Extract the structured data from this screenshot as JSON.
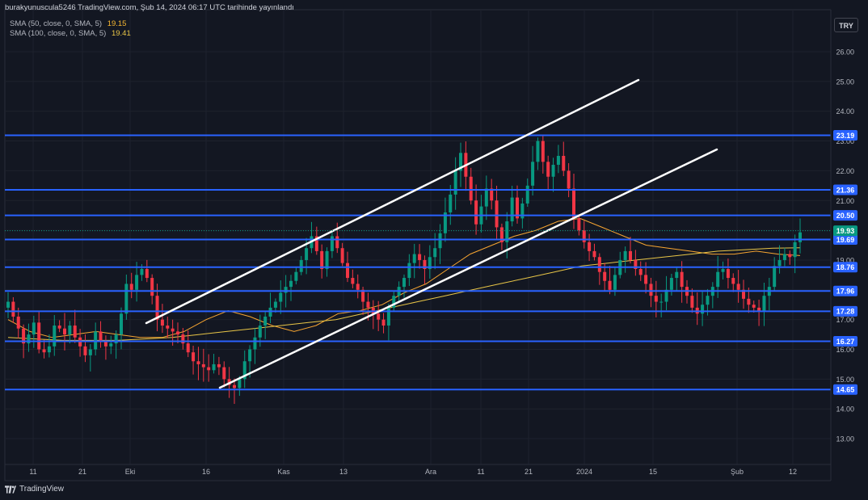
{
  "header": {
    "publisher": "burakyunuscula5246 TradingView.com, Şub 14, 2024 06:17 UTC tarihinde yayınlandı",
    "currency": "TRY"
  },
  "legend": {
    "sma50": {
      "label": "SMA (50, close, 0, SMA, 5)",
      "value": "19.15",
      "color": "#f7b731"
    },
    "sma100": {
      "label": "SMA (100, close, 0, SMA, 5)",
      "value": "19.41",
      "color": "#e8c547"
    }
  },
  "footer": {
    "brand": "TradingView"
  },
  "colors": {
    "background": "#131722",
    "up": "#089981",
    "down": "#f23645",
    "level_line": "#2962ff",
    "level_badge": "#2962ff",
    "channel": "#ffffff",
    "grid": "#1e222d",
    "price_badge": "#089981"
  },
  "chart_data": {
    "type": "candlestick",
    "ylim": [
      12.3,
      26.7
    ],
    "y_ticks": [
      "13.00",
      "14.00",
      "15.00",
      "16.00",
      "17.00",
      "18.00",
      "19.00",
      "20.00",
      "21.00",
      "22.00",
      "23.00",
      "24.00",
      "25.00",
      "26.00"
    ],
    "x_labels": [
      "11",
      "21",
      "Eki",
      "16",
      "Kas",
      "13",
      "Ara",
      "11",
      "21",
      "2024",
      "15",
      "Şub",
      "12"
    ],
    "horizontal_levels": [
      "23.19",
      "21.36",
      "20.50",
      "19.69",
      "18.76",
      "17.96",
      "17.28",
      "16.27",
      "14.65"
    ],
    "last_price": "19.93",
    "channel_lines": [
      {
        "from": [
          27,
          16.8
        ],
        "to": [
          124,
          25.0
        ]
      },
      {
        "from": [
          43,
          14.65
        ],
        "to": [
          140,
          22.6
        ]
      }
    ],
    "close_series": [
      17.6,
      17.1,
      16.7,
      16.2,
      16.5,
      16.9,
      16.0,
      15.9,
      16.1,
      16.8,
      16.7,
      16.5,
      16.8,
      16.4,
      16.1,
      15.8,
      16.0,
      16.6,
      16.3,
      16.1,
      16.2,
      16.5,
      17.2,
      18.2,
      18.0,
      18.5,
      18.7,
      18.4,
      17.8,
      17.0,
      16.8,
      16.7,
      16.6,
      16.5,
      16.2,
      15.9,
      15.6,
      15.5,
      15.4,
      15.3,
      15.5,
      15.4,
      15.0,
      14.8,
      14.7,
      15.0,
      15.6,
      16.0,
      16.4,
      16.8,
      17.1,
      17.4,
      17.6,
      17.9,
      18.1,
      18.3,
      18.6,
      19.0,
      19.4,
      19.8,
      19.3,
      18.7,
      19.3,
      19.8,
      19.4,
      18.9,
      18.4,
      18.2,
      18.0,
      17.6,
      17.4,
      17.2,
      17.0,
      16.8,
      17.4,
      17.8,
      18.1,
      18.4,
      18.9,
      19.2,
      19.0,
      18.7,
      19.1,
      19.4,
      19.9,
      20.6,
      21.2,
      22.0,
      22.6,
      21.8,
      21.0,
      20.2,
      20.8,
      21.4,
      21.0,
      20.1,
      19.6,
      20.3,
      21.1,
      20.4,
      20.9,
      21.5,
      22.3,
      23.0,
      22.3,
      21.8,
      22.2,
      22.5,
      22.0,
      21.4,
      20.4,
      20.0,
      19.6,
      19.3,
      19.1,
      18.6,
      18.3,
      18.0,
      18.5,
      19.0,
      19.3,
      19.0,
      18.7,
      18.5,
      18.2,
      17.8,
      17.6,
      17.6,
      18.0,
      18.4,
      18.6,
      18.1,
      17.8,
      17.4,
      17.2,
      17.5,
      17.8,
      18.1,
      18.6,
      18.7,
      18.4,
      18.2,
      18.0,
      17.7,
      17.5,
      17.4,
      17.3,
      17.8,
      18.1,
      18.8,
      19.0,
      19.2,
      19.1,
      19.6,
      19.93
    ],
    "sma50_series": [
      17.0,
      16.6,
      16.4,
      16.5,
      16.6,
      16.5,
      16.4,
      16.4,
      16.6,
      17.0,
      17.3,
      17.1,
      16.8,
      16.6,
      16.8,
      17.2,
      17.3,
      17.5,
      17.9,
      18.2,
      18.7,
      19.2,
      19.5,
      19.8,
      20.0,
      20.3,
      20.4,
      20.1,
      19.8,
      19.5,
      19.4,
      19.3,
      19.2,
      19.2,
      19.3,
      19.2,
      19.15
    ],
    "sma100_series": [
      16.4,
      16.35,
      16.3,
      16.3,
      16.3,
      16.35,
      16.4,
      16.5,
      16.6,
      16.7,
      16.8,
      16.9,
      17.0,
      17.2,
      17.4,
      17.6,
      17.8,
      18.0,
      18.2,
      18.4,
      18.6,
      18.8,
      18.9,
      19.0,
      19.1,
      19.2,
      19.3,
      19.35,
      19.4,
      19.41
    ]
  }
}
